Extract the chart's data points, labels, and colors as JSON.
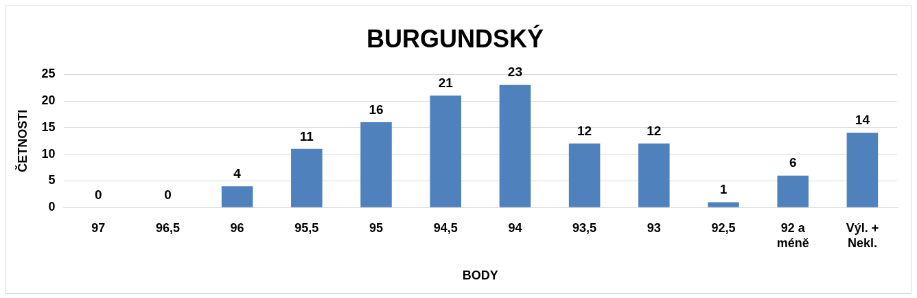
{
  "chart_data": {
    "type": "bar",
    "title": "BURGUNDSKÝ",
    "xlabel": "BODY",
    "ylabel": "ČETNOSTI",
    "categories": [
      "97",
      "96,5",
      "96",
      "95,5",
      "95",
      "94,5",
      "94",
      "93,5",
      "93",
      "92,5",
      "92 a méně",
      "Výl. + Nekl."
    ],
    "values": [
      0,
      0,
      4,
      11,
      16,
      21,
      23,
      12,
      12,
      1,
      6,
      14
    ],
    "color": "#4f81bd",
    "ylim": [
      0,
      25
    ],
    "yticks": [
      0,
      5,
      10,
      15,
      20,
      25
    ],
    "grid": "y",
    "legend": false,
    "data_labels": true
  }
}
